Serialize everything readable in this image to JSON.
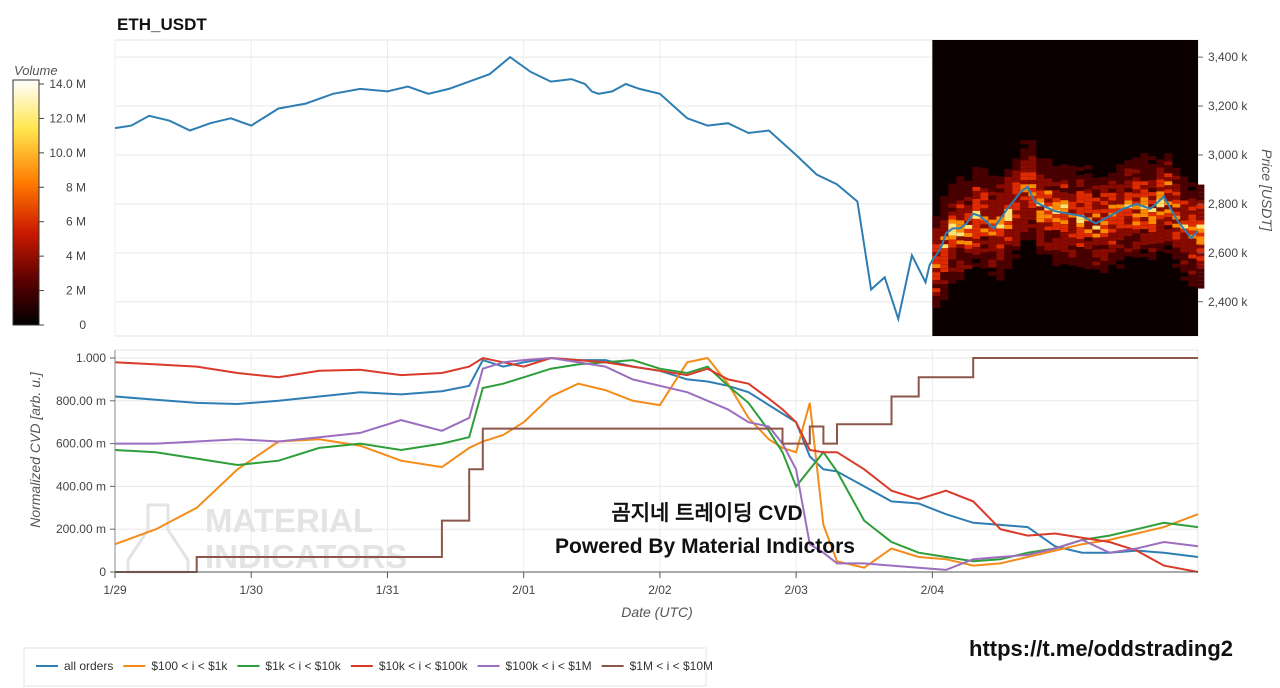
{
  "chart_data": [
    {
      "type": "line",
      "title": "ETH_USDT",
      "ylabel": "Price [USDT]",
      "ylim": [
        2260,
        3470
      ],
      "yticks": [
        "2,400 k",
        "2,600 k",
        "2,800 k",
        "3,000 k",
        "3,200 k",
        "3,400 k"
      ],
      "ytick_values": [
        2400,
        2600,
        2800,
        3000,
        3200,
        3400
      ],
      "line_color": "#2f7eb3",
      "series": [
        {
          "x": [
            0,
            0.12,
            0.25,
            0.4,
            0.55,
            0.7,
            0.85,
            1.0,
            1.2,
            1.4,
            1.6,
            1.8,
            2.0,
            2.15,
            2.3,
            2.45,
            2.6,
            2.75,
            2.9,
            3.05,
            3.2,
            3.35,
            3.45,
            3.5,
            3.55,
            3.65,
            3.75,
            3.85,
            4.0,
            4.1,
            4.2,
            4.35,
            4.5,
            4.65,
            4.8,
            5.0,
            5.15,
            5.3,
            5.45,
            5.55,
            5.65,
            5.75,
            5.85,
            5.95,
            5.98,
            6.0,
            6.04,
            6.07,
            6.1,
            6.15,
            6.2,
            6.25,
            6.3,
            6.35,
            6.45,
            6.55,
            6.65,
            6.7,
            6.75,
            6.82,
            6.9,
            7.0,
            7.1,
            7.2,
            7.3,
            7.4,
            7.5,
            7.6,
            7.7,
            7.8,
            7.9,
            7.95
          ],
          "values": [
            3110,
            3120,
            3160,
            3140,
            3100,
            3130,
            3150,
            3120,
            3190,
            3210,
            3250,
            3270,
            3260,
            3280,
            3250,
            3270,
            3300,
            3330,
            3400,
            3340,
            3300,
            3310,
            3290,
            3260,
            3250,
            3260,
            3290,
            3270,
            3250,
            3200,
            3150,
            3120,
            3130,
            3090,
            3100,
            3000,
            2920,
            2880,
            2810,
            2450,
            2500,
            2330,
            2590,
            2480,
            2550,
            2570,
            2600,
            2630,
            2680,
            2700,
            2700,
            2720,
            2760,
            2750,
            2700,
            2780,
            2850,
            2870,
            2810,
            2790,
            2770,
            2760,
            2750,
            2720,
            2750,
            2780,
            2800,
            2780,
            2830,
            2730,
            2660,
            2690
          ]
        }
      ],
      "heatmap_colorbar": {
        "label": "Volume",
        "ticks": [
          "0",
          "2 M",
          "4 M",
          "6 M",
          "8 M",
          "10.0 M",
          "12.0 M",
          "14.0 M"
        ],
        "tick_values": [
          0,
          2,
          4,
          6,
          8,
          10,
          12,
          14
        ]
      },
      "heatmap_region": {
        "x_start": 6.0,
        "x_end": 7.95,
        "y_low": 2260,
        "y_high": 3470
      }
    },
    {
      "type": "line",
      "xlabel": "Date (UTC)",
      "ylabel": "Normalized CVD [arb. u.]",
      "ylim": [
        0,
        1000
      ],
      "xlim": [
        0,
        7.95
      ],
      "xticks": [
        "1/29",
        "1/30",
        "1/31",
        "2/01",
        "2/02",
        "2/03",
        "2/04"
      ],
      "xtick_values": [
        0,
        1,
        2,
        3,
        4,
        5,
        6
      ],
      "yticks": [
        "0",
        "200.00 m",
        "400.00 m",
        "600.00 m",
        "800.00 m",
        "1.000"
      ],
      "ytick_values": [
        0,
        200,
        400,
        600,
        800,
        1000
      ],
      "x": [
        0,
        0.3,
        0.6,
        0.9,
        1.2,
        1.5,
        1.8,
        2.1,
        2.4,
        2.6,
        2.7,
        2.85,
        3.0,
        3.2,
        3.4,
        3.6,
        3.8,
        4.0,
        4.2,
        4.35,
        4.5,
        4.65,
        4.8,
        4.9,
        5.0,
        5.1,
        5.2,
        5.3,
        5.5,
        5.7,
        5.9,
        6.1,
        6.3,
        6.5,
        6.7,
        6.9,
        7.1,
        7.3,
        7.5,
        7.7,
        7.95
      ],
      "series": [
        {
          "name": "all orders",
          "color": "#2f7eb3",
          "values": [
            820,
            805,
            790,
            785,
            800,
            820,
            840,
            830,
            845,
            870,
            990,
            960,
            980,
            1000,
            990,
            990,
            960,
            940,
            900,
            890,
            870,
            840,
            780,
            740,
            700,
            540,
            480,
            470,
            400,
            330,
            320,
            270,
            230,
            220,
            210,
            120,
            90,
            90,
            100,
            90,
            70
          ]
        },
        {
          "name": "$100 < i < $1k",
          "color": "#f48c1a",
          "values": [
            130,
            200,
            300,
            480,
            610,
            620,
            590,
            520,
            490,
            580,
            610,
            640,
            700,
            820,
            880,
            850,
            800,
            780,
            980,
            1000,
            880,
            720,
            620,
            580,
            560,
            790,
            220,
            50,
            20,
            110,
            70,
            60,
            30,
            40,
            70,
            100,
            130,
            150,
            180,
            210,
            270
          ]
        },
        {
          "name": "$1k < i < $10k",
          "color": "#2e9e3a",
          "values": [
            570,
            560,
            530,
            500,
            520,
            580,
            600,
            570,
            600,
            630,
            860,
            880,
            910,
            950,
            970,
            980,
            990,
            950,
            930,
            960,
            870,
            790,
            660,
            560,
            400,
            480,
            560,
            470,
            240,
            140,
            90,
            70,
            50,
            60,
            90,
            110,
            150,
            170,
            200,
            230,
            210
          ]
        },
        {
          "name": "$10k < i < $100k",
          "color": "#d93a2a",
          "values": [
            980,
            970,
            960,
            930,
            910,
            940,
            945,
            920,
            930,
            960,
            1000,
            980,
            960,
            1000,
            990,
            980,
            960,
            940,
            920,
            950,
            900,
            880,
            810,
            760,
            700,
            570,
            560,
            560,
            480,
            380,
            340,
            380,
            330,
            200,
            170,
            180,
            160,
            140,
            100,
            30,
            0
          ]
        },
        {
          "name": "$100k < i < $1M",
          "color": "#9c6ebf",
          "values": [
            600,
            600,
            610,
            620,
            610,
            630,
            650,
            710,
            660,
            720,
            950,
            980,
            990,
            1000,
            980,
            960,
            900,
            870,
            840,
            800,
            760,
            700,
            680,
            600,
            480,
            130,
            90,
            40,
            40,
            30,
            20,
            10,
            60,
            70,
            80,
            110,
            150,
            90,
            110,
            140,
            120
          ]
        },
        {
          "name": "$1M < i < $10M",
          "color": "#8c564b",
          "values": [
            0,
            0,
            70,
            70,
            70,
            70,
            70,
            70,
            240,
            480,
            670,
            670,
            670,
            670,
            670,
            670,
            670,
            670,
            670,
            670,
            670,
            670,
            670,
            600,
            600,
            680,
            600,
            690,
            690,
            820,
            910,
            910,
            1000,
            1000,
            1000,
            1000,
            1000,
            1000,
            1000,
            1000,
            1000
          ]
        }
      ],
      "legend_position": "bottom-left",
      "annotations": [
        "곰지네 트레이딩 CVD",
        "Powered By Material Indictors"
      ]
    }
  ],
  "watermark": {
    "line1": "MATERIAL",
    "line2": "INDICATORS"
  },
  "footer_url": "https://t.me/oddstrading2"
}
